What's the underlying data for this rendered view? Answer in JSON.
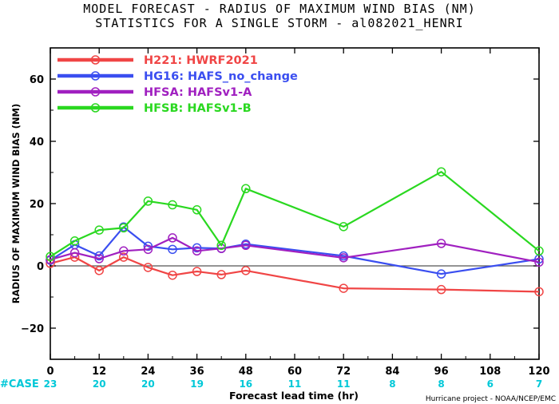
{
  "title_line1": "MODEL FORECAST - RADIUS OF MAXIMUM WIND BIAS (NM)",
  "title_line2": "STATISTICS FOR A SINGLE STORM - al082021_HENRI",
  "credit": "Hurricane project - NOAA/NCEP/EMC",
  "colors": {
    "case_counts": "#00c8d8",
    "zero_line": "#555555"
  },
  "chart_data": {
    "type": "line",
    "xlabel": "Forecast lead time (hr)",
    "ylabel": "RADIUS OF MAXIMUM WIND BIAS (NM)",
    "xlim": [
      0,
      120
    ],
    "ylim": [
      -30,
      70
    ],
    "xticks": [
      0,
      12,
      24,
      36,
      48,
      60,
      72,
      84,
      96,
      108,
      120
    ],
    "yticks": [
      -20,
      0,
      20,
      40,
      60
    ],
    "ytick_labels": [
      "−20",
      "0",
      "20",
      "40",
      "60"
    ],
    "legend_position": "top-left",
    "case_label": "#CASE",
    "case_counts": [
      {
        "x": 0,
        "n": 23
      },
      {
        "x": 12,
        "n": 20
      },
      {
        "x": 24,
        "n": 20
      },
      {
        "x": 36,
        "n": 19
      },
      {
        "x": 48,
        "n": 16
      },
      {
        "x": 60,
        "n": 11
      },
      {
        "x": 72,
        "n": 11
      },
      {
        "x": 84,
        "n": 8
      },
      {
        "x": 96,
        "n": 8
      },
      {
        "x": 108,
        "n": 6
      },
      {
        "x": 120,
        "n": 7
      }
    ],
    "series": [
      {
        "name": "H221: HWRF2021",
        "color": "#f04545",
        "x": [
          0,
          6,
          12,
          18,
          24,
          30,
          36,
          42,
          48,
          72,
          96,
          120
        ],
        "y": [
          0.8,
          2.8,
          -1.5,
          2.8,
          -0.5,
          -3,
          -1.8,
          -2.8,
          -1.5,
          -7.2,
          -7.6,
          -8.3
        ]
      },
      {
        "name": "HG16: HAFS_no_change",
        "color": "#3a4ef0",
        "x": [
          0,
          6,
          12,
          18,
          24,
          30,
          36,
          42,
          48,
          72,
          96,
          120
        ],
        "y": [
          1.8,
          6.8,
          3.2,
          12.5,
          6.3,
          5.3,
          5.8,
          5.6,
          7.0,
          3.2,
          -2.6,
          2.2
        ]
      },
      {
        "name": "HFSA: HAFSv1-A",
        "color": "#a020c0",
        "x": [
          0,
          6,
          12,
          18,
          24,
          30,
          36,
          42,
          48,
          72,
          96,
          120
        ],
        "y": [
          2.0,
          4.2,
          2.3,
          4.8,
          5.3,
          9.0,
          4.8,
          5.6,
          6.6,
          2.6,
          7.2,
          1.2
        ]
      },
      {
        "name": "HFSB: HAFSv1-B",
        "color": "#2ad820",
        "x": [
          0,
          6,
          12,
          18,
          24,
          30,
          36,
          42,
          48,
          72,
          96,
          120
        ],
        "y": [
          3.0,
          8.0,
          11.5,
          12.2,
          20.8,
          19.6,
          18.0,
          6.6,
          24.8,
          12.6,
          30.2,
          4.8
        ]
      }
    ]
  }
}
